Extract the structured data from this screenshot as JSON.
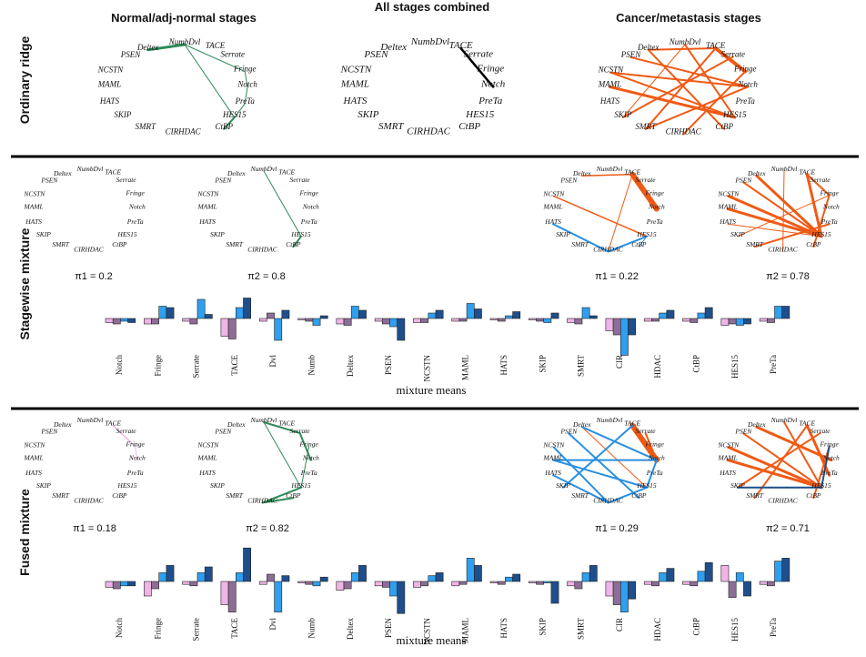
{
  "column_titles": [
    "Normal/adj-normal stages",
    "All stages combined",
    "Cancer/metastasis stages"
  ],
  "row_titles": [
    "Ordinary ridge",
    "Stagewise mixture",
    "Fused mixture"
  ],
  "genes": [
    "Notch",
    "Fringe",
    "Serrate",
    "TACE",
    "Dvl",
    "Numb",
    "Deltex",
    "PSEN",
    "NCSTN",
    "MAML",
    "HATS",
    "SKIP",
    "SMRT",
    "CIR",
    "HDAC",
    "CtBP",
    "HES15",
    "PreTa"
  ],
  "colors": {
    "green": "#2e8b57",
    "black": "#000000",
    "orange": "#f05a14",
    "blue": "#2a8fe0",
    "pink": "#f0b4e6",
    "purple": "#8c6e96",
    "lightblue": "#2f9ff0",
    "darkblue": "#1e4f8c",
    "divider": "#000000"
  },
  "networks": {
    "ordinary_normal": {
      "color": "green",
      "edges": [
        [
          "Deltex",
          "Dvl",
          3
        ],
        [
          "Dvl",
          "Fringe",
          1
        ],
        [
          "Fringe",
          "Notch",
          1
        ],
        [
          "Notch",
          "PreTa",
          1
        ],
        [
          "PreTa",
          "HES15",
          1
        ],
        [
          "Dvl",
          "HES15",
          1
        ],
        [
          "HES15",
          "CtBP",
          2
        ]
      ]
    },
    "ordinary_all": {
      "color": "black",
      "edges": [
        [
          "TACE",
          "Notch",
          2.5
        ]
      ]
    },
    "ordinary_cancer": {
      "color": "orange",
      "edges": [
        [
          "Deltex",
          "TACE",
          2
        ],
        [
          "PSEN",
          "Notch",
          2
        ],
        [
          "TACE",
          "Fringe",
          4
        ],
        [
          "Numb",
          "HES15",
          2
        ],
        [
          "Dvl",
          "SKIP",
          1
        ],
        [
          "NCSTN",
          "HES15",
          2
        ],
        [
          "MAML",
          "HES15",
          3
        ],
        [
          "Deltex",
          "CtBP",
          2
        ],
        [
          "TACE",
          "SMRT",
          2
        ],
        [
          "Serrate",
          "SKIP",
          2
        ],
        [
          "Fringe",
          "CIR",
          2
        ],
        [
          "NCSTN",
          "Notch",
          2
        ],
        [
          "Notch",
          "SMRT",
          2
        ]
      ]
    },
    "stage_n1": {
      "color": "green",
      "edges": []
    },
    "stage_n2": {
      "color": "green",
      "edges": [
        [
          "Dvl",
          "HES15",
          1
        ],
        [
          "HES15",
          "CtBP",
          2
        ]
      ]
    },
    "stage_c1": {
      "color": "orange",
      "edges": [
        [
          "TACE",
          "Notch",
          6
        ],
        [
          "Deltex",
          "TACE",
          1.5
        ],
        [
          "TACE",
          "CIR",
          1
        ],
        [
          "NCSTN",
          "HES15",
          1.5
        ]
      ],
      "blue_edges": [
        [
          "HATS",
          "CIR",
          2
        ],
        [
          "CIR",
          "HES15",
          2
        ],
        [
          "HES15",
          "CtBP",
          1
        ]
      ]
    },
    "stage_c2": {
      "color": "orange",
      "edges": [
        [
          "Deltex",
          "HES15",
          3
        ],
        [
          "TACE",
          "HES15",
          3
        ],
        [
          "NCSTN",
          "HES15",
          3
        ],
        [
          "PSEN",
          "HES15",
          2
        ],
        [
          "MAML",
          "HES15",
          3
        ],
        [
          "TACE",
          "Fringe",
          2
        ],
        [
          "Fringe",
          "CtBP",
          2
        ],
        [
          "Fringe",
          "SKIP",
          1
        ],
        [
          "SMRT",
          "PreTa",
          2
        ],
        [
          "Numb",
          "Dvl",
          1
        ],
        [
          "Dvl",
          "CIR",
          1
        ],
        [
          "HATS",
          "HES15",
          1
        ]
      ]
    },
    "fused_n1": {
      "color": "pink",
      "edges": [
        [
          "TACE",
          "Fringe",
          1.5
        ],
        [
          "Fringe",
          "Notch",
          1
        ]
      ]
    },
    "fused_n2": {
      "color": "green",
      "edges": [
        [
          "Dvl",
          "Serrate",
          2
        ],
        [
          "Serrate",
          "Notch",
          2
        ],
        [
          "Dvl",
          "HES15",
          1
        ],
        [
          "Fringe",
          "HES15",
          1
        ],
        [
          "HES15",
          "CIR",
          2
        ],
        [
          "CIR",
          "CtBP",
          2
        ]
      ]
    },
    "fused_c1": {
      "color": "orange",
      "edges": [
        [
          "TACE",
          "Notch",
          6
        ],
        [
          "Serrate",
          "Notch",
          2
        ],
        [
          "Deltex",
          "HES15",
          1
        ]
      ],
      "blue_edges": [
        [
          "Deltex",
          "Notch",
          2
        ],
        [
          "TACE",
          "SKIP",
          2
        ],
        [
          "NCSTN",
          "CIR",
          2
        ],
        [
          "MAML",
          "HES15",
          2
        ],
        [
          "MAML",
          "Notch",
          2
        ],
        [
          "PSEN",
          "CtBP",
          2
        ],
        [
          "HATS",
          "CIR",
          2
        ],
        [
          "CIR",
          "HES15",
          2
        ],
        [
          "Notch",
          "HES15",
          2
        ]
      ]
    },
    "fused_c2": {
      "color": "orange",
      "edges": [
        [
          "NCSTN",
          "HES15",
          3
        ],
        [
          "PSEN",
          "HES15",
          2
        ],
        [
          "Deltex",
          "Notch",
          3
        ],
        [
          "TACE",
          "PreTa",
          3
        ],
        [
          "Dvl",
          "HES15",
          2
        ],
        [
          "Serrate",
          "SKIP",
          2
        ],
        [
          "MAML",
          "HES15",
          3
        ],
        [
          "Fringe",
          "CtBP",
          2
        ],
        [
          "TACE",
          "SMRT",
          2
        ]
      ],
      "navy_edges": [
        [
          "Fringe",
          "HES15",
          2
        ],
        [
          "SKIP",
          "HES15",
          2
        ]
      ]
    }
  },
  "pi_labels": {
    "stage_n1": "π1 = 0.2",
    "stage_n2": "π2 = 0.8",
    "stage_c1": "π1 = 0.22",
    "stage_c2": "π2 = 0.78",
    "fused_n1": "π1 = 0.18",
    "fused_n2": "π2 = 0.82",
    "fused_c1": "π1 = 0.29",
    "fused_c2": "π2 = 0.71"
  },
  "mixture_means_label": "mixture means",
  "chart_data": [
    {
      "type": "bar",
      "title": "",
      "xlabel": "mixture means",
      "categories": [
        "Notch",
        "Fringe",
        "Serrate",
        "TACE",
        "Dvl",
        "Numb",
        "Deltex",
        "PSEN",
        "NCSTN",
        "MAML",
        "HATS",
        "SKIP",
        "SMRT",
        "CIR",
        "HDAC",
        "CtBP",
        "HES15",
        "PreTa"
      ],
      "series": [
        {
          "values": [
            -0.3,
            -0.4,
            -0.2,
            -1.3,
            -0.2,
            -0.1,
            -0.4,
            -0.2,
            -0.3,
            -0.2,
            -0.1,
            -0.1,
            -0.3,
            -0.9,
            -0.2,
            -0.2,
            -0.5,
            -0.2
          ]
        },
        {
          "values": [
            -0.4,
            -0.4,
            -0.4,
            -1.5,
            0.4,
            -0.2,
            -0.5,
            -0.4,
            -0.3,
            -0.2,
            -0.2,
            -0.2,
            -0.4,
            -1.2,
            -0.2,
            -0.3,
            -0.4,
            -0.3
          ]
        },
        {
          "values": [
            -0.2,
            0.9,
            1.4,
            0.8,
            -1.6,
            -0.5,
            0.9,
            -0.6,
            0.4,
            1.1,
            0.2,
            -0.3,
            0.8,
            -2.7,
            0.4,
            0.4,
            -0.5,
            0.9
          ]
        },
        {
          "values": [
            -0.3,
            0.8,
            0.3,
            1.5,
            0.6,
            0.2,
            0.6,
            -1.6,
            0.6,
            0.7,
            0.5,
            0.4,
            0.2,
            -1.2,
            0.6,
            0.8,
            -0.4,
            0.9
          ]
        }
      ]
    },
    {
      "type": "bar",
      "title": "",
      "xlabel": "mixture means",
      "categories": [
        "Notch",
        "Fringe",
        "Serrate",
        "TACE",
        "Dvl",
        "Numb",
        "Deltex",
        "PSEN",
        "NCSTN",
        "MAML",
        "HATS",
        "SKIP",
        "SMRT",
        "CIR",
        "HDAC",
        "CtBP",
        "HES15",
        "PreTa"
      ],
      "series": [
        {
          "values": [
            -0.4,
            -1.0,
            -0.2,
            -1.6,
            -0.2,
            -0.1,
            -0.6,
            -0.3,
            -0.4,
            -0.3,
            -0.1,
            -0.1,
            -0.3,
            -1.0,
            -0.2,
            -0.2,
            1.1,
            -0.2
          ]
        },
        {
          "values": [
            -0.5,
            -0.5,
            -0.3,
            -2.1,
            0.5,
            -0.2,
            -0.5,
            -0.4,
            -0.3,
            -0.2,
            -0.2,
            -0.2,
            -0.5,
            -1.6,
            -0.3,
            -0.3,
            -1.1,
            -0.3
          ]
        },
        {
          "values": [
            -0.3,
            0.6,
            0.6,
            0.6,
            -2.1,
            -0.3,
            0.6,
            -1.0,
            0.4,
            1.6,
            0.3,
            -0.1,
            0.6,
            -2.1,
            0.6,
            0.7,
            0.6,
            1.4
          ]
        },
        {
          "values": [
            -0.3,
            1.1,
            1.0,
            2.3,
            0.4,
            0.3,
            1.1,
            -2.2,
            0.6,
            1.1,
            0.5,
            -1.5,
            1.1,
            -1.2,
            0.9,
            1.3,
            -1.0,
            1.6
          ]
        }
      ]
    }
  ]
}
